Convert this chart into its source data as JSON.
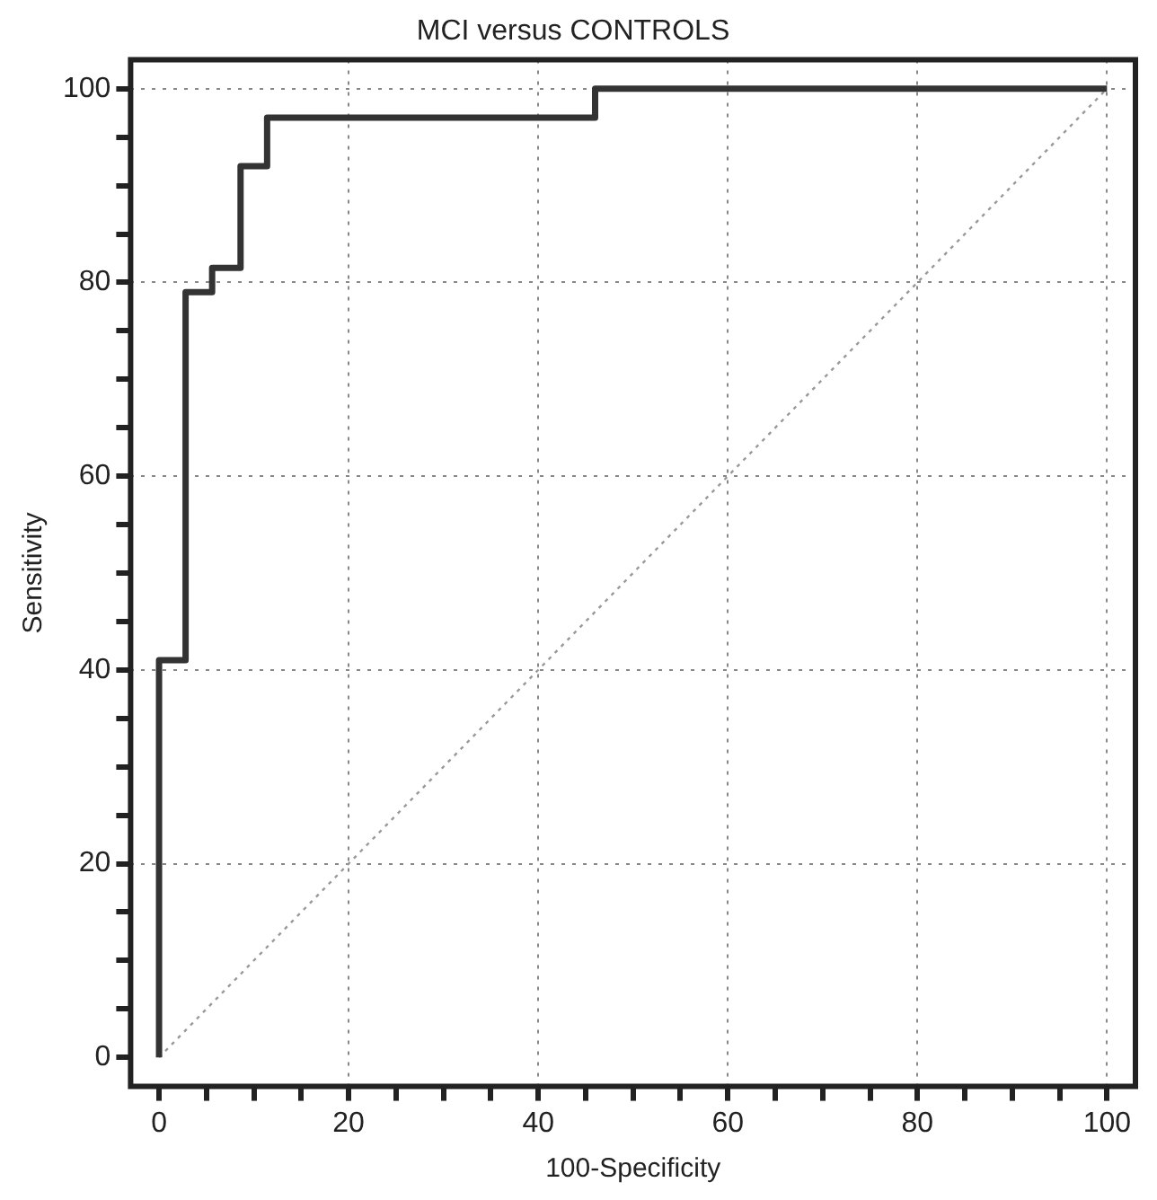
{
  "chart_data": {
    "type": "step",
    "title": "MCI versus CONTROLS",
    "xlabel": "100-Specificity",
    "ylabel": "Sensitivity",
    "xlim": [
      -3,
      103
    ],
    "ylim": [
      -3,
      103
    ],
    "xticks": [
      0,
      {
        "value": 5,
        "label": null
      },
      {
        "value": 10,
        "label": null
      },
      {
        "value": 15,
        "label": null
      },
      20,
      {
        "value": 25,
        "label": null
      },
      {
        "value": 30,
        "label": null
      },
      {
        "value": 35,
        "label": null
      },
      40,
      {
        "value": 45,
        "label": null
      },
      {
        "value": 50,
        "label": null
      },
      {
        "value": 55,
        "label": null
      },
      60,
      {
        "value": 65,
        "label": null
      },
      {
        "value": 70,
        "label": null
      },
      {
        "value": 75,
        "label": null
      },
      80,
      {
        "value": 85,
        "label": null
      },
      {
        "value": 90,
        "label": null
      },
      {
        "value": 95,
        "label": null
      },
      100
    ],
    "yticks": [
      0,
      {
        "value": 5,
        "label": null
      },
      {
        "value": 10,
        "label": null
      },
      {
        "value": 15,
        "label": null
      },
      20,
      {
        "value": 25,
        "label": null
      },
      {
        "value": 30,
        "label": null
      },
      {
        "value": 35,
        "label": null
      },
      40,
      {
        "value": 45,
        "label": null
      },
      {
        "value": 50,
        "label": null
      },
      {
        "value": 55,
        "label": null
      },
      60,
      {
        "value": 65,
        "label": null
      },
      {
        "value": 70,
        "label": null
      },
      {
        "value": 75,
        "label": null
      },
      80,
      {
        "value": 85,
        "label": null
      },
      {
        "value": 90,
        "label": null
      },
      {
        "value": 95,
        "label": null
      },
      100
    ],
    "grid": true,
    "legend": false,
    "marker": "none",
    "series": [
      {
        "type": "step",
        "color": "#333333",
        "line_style": "solid",
        "x": [
          0,
          0,
          2.8,
          5.6,
          8.6,
          11.4,
          46,
          100
        ],
        "values": [
          0,
          41,
          79,
          81.5,
          92,
          97,
          100,
          100
        ]
      },
      {
        "type": "line",
        "color": "#999999",
        "line_style": "dotted",
        "x": [
          0,
          100
        ],
        "values": [
          0,
          100
        ]
      }
    ]
  }
}
